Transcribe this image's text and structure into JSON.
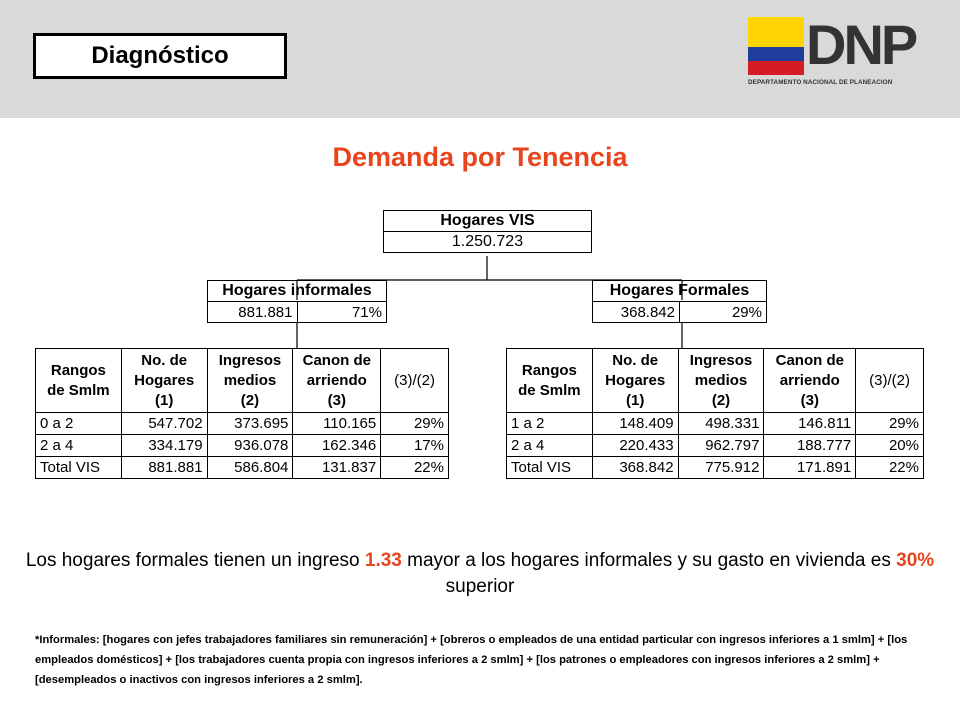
{
  "header": {
    "section_label": "Diagnóstico"
  },
  "logo": {
    "text": "DNP",
    "subtitle": "DEPARTAMENTO NACIONAL DE PLANEACION",
    "flag_colors": [
      "#ffd400",
      "#1f3d9c",
      "#d51b23"
    ]
  },
  "title": "Demanda por Tenencia",
  "colors": {
    "accent": "#e8451e"
  },
  "vis": {
    "label": "Hogares VIS",
    "value": "1.250.723"
  },
  "informales": {
    "label": "Hogares informales",
    "count": "881.881",
    "pct": "71%"
  },
  "formales": {
    "label": "Hogares Formales",
    "count": "368.842",
    "pct": "29%"
  },
  "table_headers": {
    "rangos": [
      "Rangos",
      "de Smlm"
    ],
    "hogares": [
      "No. de",
      "Hogares",
      "(1)"
    ],
    "ingresos": [
      "Ingresos",
      "medios",
      "(2)"
    ],
    "canon": [
      "Canon de",
      "arriendo",
      "(3)"
    ],
    "ratio": "(3)/(2)"
  },
  "informales_table": {
    "rows": [
      [
        "0 a 2",
        "547.702",
        "373.695",
        "110.165",
        "29%"
      ],
      [
        "2 a 4",
        "334.179",
        "936.078",
        "162.346",
        "17%"
      ],
      [
        "Total VIS",
        "881.881",
        "586.804",
        "131.837",
        "22%"
      ]
    ]
  },
  "formales_table": {
    "rows": [
      [
        "1 a 2",
        "148.409",
        "498.331",
        "146.811",
        "29%"
      ],
      [
        "2 a 4",
        "220.433",
        "962.797",
        "188.777",
        "20%"
      ],
      [
        "Total VIS",
        "368.842",
        "775.912",
        "171.891",
        "22%"
      ]
    ]
  },
  "summary": {
    "part1": "Los hogares formales tienen un ingreso ",
    "hl1": "1.33",
    "part2": " mayor a los hogares informales y su gasto en vivienda es ",
    "hl2": "30%",
    "part3": " superior"
  },
  "footnote": "*Informales: [hogares con jefes trabajadores familiares sin remuneración] + [obreros o empleados de una entidad particular con ingresos inferiores a 1 smlm] + [los empleados domésticos] + [los trabajadores cuenta propia con ingresos inferiores a 2 smlm] + [los patrones o empleadores con ingresos inferiores a 2 smlm] + [desempleados o inactivos con ingresos inferiores a 2 smlm]."
}
